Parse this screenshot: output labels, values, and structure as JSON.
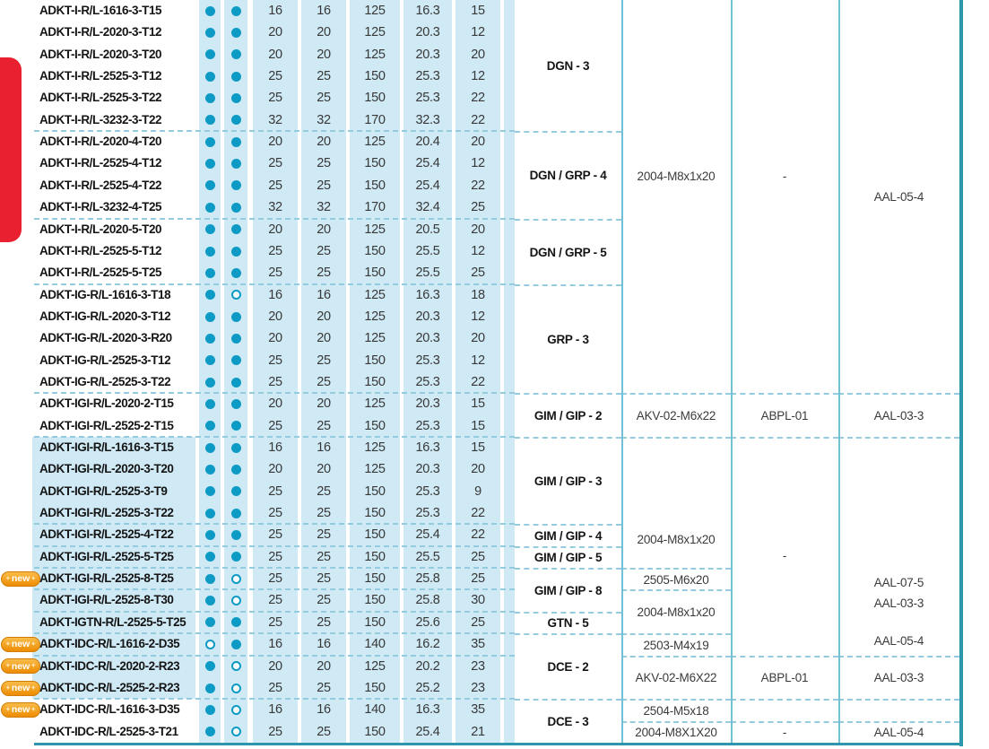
{
  "colors": {
    "cell_blue": "#cfe9f5",
    "dash": "#94cbdf",
    "grid_line": "#72c0d7",
    "table_border": "#2e96ac",
    "dot_teal": "#0d9ac4",
    "red_tab": "#e82030",
    "badge_orange": "#ee8c03"
  },
  "badge": {
    "label": "new",
    "sparkle": "✦"
  },
  "table": {
    "rows": [
      {
        "designation": "ADKT-I-R/L-1616-3-T15",
        "new": false,
        "dots": [
          "filled",
          "filled"
        ],
        "values": [
          "16",
          "16",
          "125",
          "16.3",
          "15"
        ]
      },
      {
        "designation": "ADKT-I-R/L-2020-3-T12",
        "new": false,
        "dots": [
          "filled",
          "filled"
        ],
        "values": [
          "20",
          "20",
          "125",
          "20.3",
          "12"
        ]
      },
      {
        "designation": "ADKT-I-R/L-2020-3-T20",
        "new": false,
        "dots": [
          "filled",
          "filled"
        ],
        "values": [
          "20",
          "20",
          "125",
          "20.3",
          "20"
        ]
      },
      {
        "designation": "ADKT-I-R/L-2525-3-T12",
        "new": false,
        "dots": [
          "filled",
          "filled"
        ],
        "values": [
          "25",
          "25",
          "150",
          "25.3",
          "12"
        ]
      },
      {
        "designation": "ADKT-I-R/L-2525-3-T22",
        "new": false,
        "dots": [
          "filled",
          "filled"
        ],
        "values": [
          "25",
          "25",
          "150",
          "25.3",
          "22"
        ]
      },
      {
        "designation": "ADKT-I-R/L-3232-3-T22",
        "new": false,
        "dots": [
          "filled",
          "filled"
        ],
        "values": [
          "32",
          "32",
          "170",
          "32.3",
          "22"
        ]
      },
      {
        "designation": "ADKT-I-R/L-2020-4-T20",
        "new": false,
        "dots": [
          "filled",
          "filled"
        ],
        "values": [
          "20",
          "20",
          "125",
          "20.4",
          "20"
        ]
      },
      {
        "designation": "ADKT-I-R/L-2525-4-T12",
        "new": false,
        "dots": [
          "filled",
          "filled"
        ],
        "values": [
          "25",
          "25",
          "150",
          "25.4",
          "12"
        ]
      },
      {
        "designation": "ADKT-I-R/L-2525-4-T22",
        "new": false,
        "dots": [
          "filled",
          "filled"
        ],
        "values": [
          "25",
          "25",
          "150",
          "25.4",
          "22"
        ]
      },
      {
        "designation": "ADKT-I-R/L-3232-4-T25",
        "new": false,
        "dots": [
          "filled",
          "filled"
        ],
        "values": [
          "32",
          "32",
          "170",
          "32.4",
          "25"
        ]
      },
      {
        "designation": "ADKT-I-R/L-2020-5-T20",
        "new": false,
        "dots": [
          "filled",
          "filled"
        ],
        "values": [
          "20",
          "20",
          "125",
          "20.5",
          "20"
        ]
      },
      {
        "designation": "ADKT-I-R/L-2525-5-T12",
        "new": false,
        "dots": [
          "filled",
          "filled"
        ],
        "values": [
          "25",
          "25",
          "150",
          "25.5",
          "12"
        ]
      },
      {
        "designation": "ADKT-I-R/L-2525-5-T25",
        "new": false,
        "dots": [
          "filled",
          "filled"
        ],
        "values": [
          "25",
          "25",
          "150",
          "25.5",
          "25"
        ]
      },
      {
        "designation": "ADKT-IG-R/L-1616-3-T18",
        "new": false,
        "dots": [
          "filled",
          "open"
        ],
        "values": [
          "16",
          "16",
          "125",
          "16.3",
          "18"
        ]
      },
      {
        "designation": "ADKT-IG-R/L-2020-3-T12",
        "new": false,
        "dots": [
          "filled",
          "filled"
        ],
        "values": [
          "20",
          "20",
          "125",
          "20.3",
          "12"
        ]
      },
      {
        "designation": "ADKT-IG-R/L-2020-3-R20",
        "new": false,
        "dots": [
          "filled",
          "filled"
        ],
        "values": [
          "20",
          "20",
          "125",
          "20.3",
          "20"
        ]
      },
      {
        "designation": "ADKT-IG-R/L-2525-3-T12",
        "new": false,
        "dots": [
          "filled",
          "filled"
        ],
        "values": [
          "25",
          "25",
          "150",
          "25.3",
          "12"
        ]
      },
      {
        "designation": "ADKT-IG-R/L-2525-3-T22",
        "new": false,
        "dots": [
          "filled",
          "filled"
        ],
        "values": [
          "25",
          "25",
          "150",
          "25.3",
          "22"
        ]
      },
      {
        "designation": "ADKT-IGI-R/L-2020-2-T15",
        "new": false,
        "dots": [
          "filled",
          "filled"
        ],
        "values": [
          "20",
          "20",
          "125",
          "20.3",
          "15"
        ]
      },
      {
        "designation": "ADKT-IGI-R/L-2525-2-T15",
        "new": false,
        "dots": [
          "filled",
          "filled"
        ],
        "values": [
          "25",
          "25",
          "150",
          "25.3",
          "15"
        ]
      },
      {
        "designation": "ADKT-IGI-R/L-1616-3-T15",
        "new": false,
        "dots": [
          "filled",
          "filled"
        ],
        "values": [
          "16",
          "16",
          "125",
          "16.3",
          "15"
        ]
      },
      {
        "designation": "ADKT-IGI-R/L-2020-3-T20",
        "new": false,
        "dots": [
          "filled",
          "filled"
        ],
        "values": [
          "20",
          "20",
          "125",
          "20.3",
          "20"
        ]
      },
      {
        "designation": "ADKT-IGI-R/L-2525-3-T9",
        "new": false,
        "dots": [
          "filled",
          "filled"
        ],
        "values": [
          "25",
          "25",
          "150",
          "25.3",
          "9"
        ]
      },
      {
        "designation": "ADKT-IGI-R/L-2525-3-T22",
        "new": false,
        "dots": [
          "filled",
          "filled"
        ],
        "values": [
          "25",
          "25",
          "150",
          "25.3",
          "22"
        ]
      },
      {
        "designation": "ADKT-IGI-R/L-2525-4-T22",
        "new": false,
        "dots": [
          "filled",
          "filled"
        ],
        "values": [
          "25",
          "25",
          "150",
          "25.4",
          "22"
        ]
      },
      {
        "designation": "ADKT-IGI-R/L-2525-5-T25",
        "new": false,
        "dots": [
          "filled",
          "filled"
        ],
        "values": [
          "25",
          "25",
          "150",
          "25.5",
          "25"
        ]
      },
      {
        "designation": "ADKT-IGI-R/L-2525-8-T25",
        "new": true,
        "dots": [
          "filled",
          "open"
        ],
        "values": [
          "25",
          "25",
          "150",
          "25.8",
          "25"
        ]
      },
      {
        "designation": "ADKT-IGI-R/L-2525-8-T30",
        "new": false,
        "dots": [
          "filled",
          "open"
        ],
        "values": [
          "25",
          "25",
          "150",
          "25.8",
          "30"
        ]
      },
      {
        "designation": "ADKT-IGTN-R/L-2525-5-T25",
        "new": false,
        "dots": [
          "filled",
          "filled"
        ],
        "values": [
          "25",
          "25",
          "150",
          "25.6",
          "25"
        ]
      },
      {
        "designation": "ADKT-IDC-R/L-1616-2-D35",
        "new": true,
        "dots": [
          "open",
          "filled"
        ],
        "values": [
          "16",
          "16",
          "140",
          "16.2",
          "35"
        ]
      },
      {
        "designation": "ADKT-IDC-R/L-2020-2-R23",
        "new": true,
        "dots": [
          "filled",
          "open"
        ],
        "values": [
          "20",
          "20",
          "125",
          "20.2",
          "23"
        ]
      },
      {
        "designation": "ADKT-IDC-R/L-2525-2-R23",
        "new": true,
        "dots": [
          "filled",
          "open"
        ],
        "values": [
          "25",
          "25",
          "150",
          "25.2",
          "23"
        ]
      },
      {
        "designation": "ADKT-IDC-R/L-1616-3-D35",
        "new": true,
        "dots": [
          "filled",
          "open"
        ],
        "values": [
          "16",
          "16",
          "140",
          "16.3",
          "35"
        ]
      },
      {
        "designation": "ADKT-IDC-R/L-2525-3-T21",
        "new": false,
        "dots": [
          "filled",
          "open"
        ],
        "values": [
          "25",
          "25",
          "150",
          "25.4",
          "21"
        ]
      }
    ],
    "left_block_starts": [
      7,
      11,
      14,
      19,
      21,
      25,
      26,
      27,
      28,
      29,
      30,
      31,
      33
    ],
    "insert_blocks": [
      {
        "label": "DGN - 3",
        "start": 1,
        "span": 6
      },
      {
        "label": "DGN / GRP - 4",
        "start": 7,
        "span": 4
      },
      {
        "label": "DGN / GRP - 5",
        "start": 11,
        "span": 3
      },
      {
        "label": "GRP - 3",
        "start": 14,
        "span": 5
      },
      {
        "label": "GIM / GIP - 2",
        "start": 19,
        "span": 2
      },
      {
        "label": "GIM / GIP - 3",
        "start": 21,
        "span": 4
      },
      {
        "label": "GIM / GIP - 4",
        "start": 25,
        "span": 1
      },
      {
        "label": "GIM / GIP - 5",
        "start": 26,
        "span": 1
      },
      {
        "label": "GIM / GIP - 8",
        "start": 27,
        "span": 2
      },
      {
        "label": "GTN - 5",
        "start": 29,
        "span": 1
      },
      {
        "label": "DCE - 2",
        "start": 30,
        "span": 3
      },
      {
        "label": "DCE - 3",
        "start": 33,
        "span": 2
      }
    ],
    "screw_blocks": [
      {
        "label": "2004-M8x1x20",
        "start": 1,
        "span": 18,
        "align": "up"
      },
      {
        "label": "AKV-02-M6x22",
        "start": 19,
        "span": 2
      },
      {
        "label": "2004-M8x1x20",
        "start": 21,
        "span": 6,
        "align": "down"
      },
      {
        "label": "2505-M6x20",
        "start": 27,
        "span": 1
      },
      {
        "label": "2004-M8x1x20",
        "start": 28,
        "span": 2
      },
      {
        "label": "2503-M4x19",
        "start": 30,
        "span": 1
      },
      {
        "label": "AKV-02-M6X22",
        "start": 31,
        "span": 2
      },
      {
        "label": "2504-M5x18",
        "start": 33,
        "span": 1
      },
      {
        "label": "2004-M8X1X20",
        "start": 34,
        "span": 1
      }
    ],
    "key_blocks": [
      {
        "label": "-",
        "start": 1,
        "span": 18,
        "align": "up"
      },
      {
        "label": "ABPL-01",
        "start": 19,
        "span": 2
      },
      {
        "label": "-",
        "start": 21,
        "span": 10,
        "align": "middown"
      },
      {
        "label": "ABPL-01",
        "start": 31,
        "span": 2
      },
      {
        "label": "",
        "start": 33,
        "span": 1
      },
      {
        "label": "-",
        "start": 34,
        "span": 1
      }
    ],
    "wrench_blocks": [
      {
        "label": "AAL-05-4",
        "start": 1,
        "span": 18
      },
      {
        "label": "AAL-03-3",
        "start": 19,
        "span": 2
      },
      {
        "lines": [
          "AAL-07-5",
          "AAL-03-3",
          "AAL-05-4"
        ],
        "start": 21,
        "span": 10
      },
      {
        "label": "AAL-03-3",
        "start": 31,
        "span": 2
      },
      {
        "label": "",
        "start": 33,
        "span": 1
      },
      {
        "label": "AAL-05-4",
        "start": 34,
        "span": 1
      }
    ]
  }
}
